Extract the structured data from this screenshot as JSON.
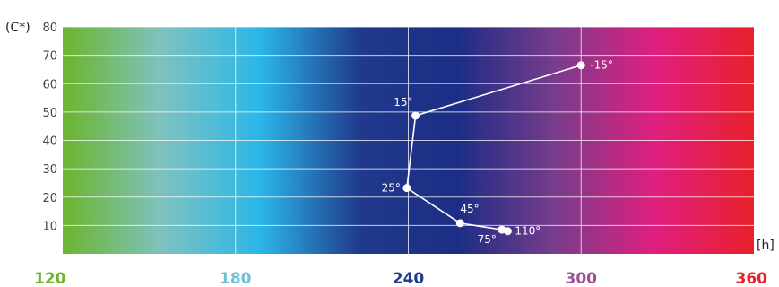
{
  "chart_data": {
    "type": "line",
    "title": "",
    "ylabel": "(C*)",
    "xlabel": "[h]",
    "xlim": [
      120,
      360
    ],
    "ylim": [
      0,
      80
    ],
    "grid": true,
    "x_ticks": [
      {
        "value": 120,
        "label": "120",
        "color": "#6cb52d"
      },
      {
        "value": 180,
        "label": "180",
        "color": "#6ec1d9"
      },
      {
        "value": 240,
        "label": "240",
        "color": "#203a8c"
      },
      {
        "value": 300,
        "label": "300",
        "color": "#9e4f9a"
      },
      {
        "value": 360,
        "label": "360",
        "color": "#e8202a"
      }
    ],
    "y_ticks": [
      "10",
      "20",
      "30",
      "40",
      "50",
      "60",
      "70",
      "80"
    ],
    "background_gradient": [
      "#6cb52d",
      "#7ec2c0",
      "#2bb6e8",
      "#203a8c",
      "#1c2d85",
      "#7a3c8c",
      "#e01f7e",
      "#e8202a"
    ],
    "series": [
      {
        "points": [
          {
            "x": 300,
            "y": 66.5,
            "label": "-15°"
          },
          {
            "x": 242.5,
            "y": 48.7,
            "label": "15°"
          },
          {
            "x": 239.5,
            "y": 23.2,
            "label": "25°"
          },
          {
            "x": 258,
            "y": 10.8,
            "label": "45°"
          },
          {
            "x": 272.5,
            "y": 8.5,
            "label": "75°"
          },
          {
            "x": 274.5,
            "y": 8.0,
            "label": "110°"
          }
        ]
      }
    ]
  }
}
